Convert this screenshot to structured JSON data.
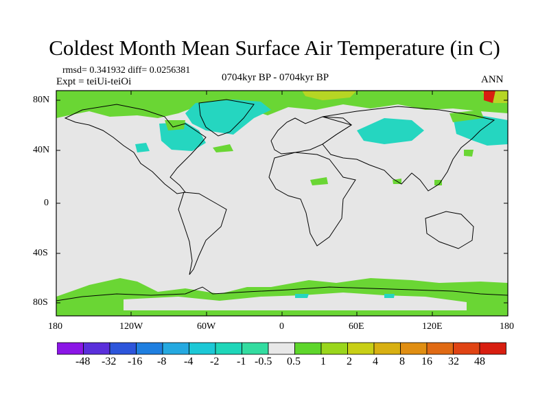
{
  "title": "Coldest Month Mean Surface Air Temperature (in C)",
  "stats": "rmsd= 0.341932 diff= 0.0256381",
  "experiment": "Expt = teiUi-teiOi",
  "period": "0704kyr BP - 0704kyr BP",
  "season": "ANN",
  "lat_ticks": [
    "80N",
    "40N",
    "0",
    "40S",
    "80S"
  ],
  "lon_ticks": [
    "180",
    "120W",
    "60W",
    "0",
    "60E",
    "120E",
    "180"
  ],
  "colorbar": {
    "labels": [
      "-48",
      "-32",
      "-16",
      "-8",
      "-4",
      "-2",
      "-1",
      "-0.5",
      "0.5",
      "1",
      "2",
      "4",
      "8",
      "16",
      "32",
      "48"
    ],
    "colors": [
      "#8b16e6",
      "#5a2fdb",
      "#2d55db",
      "#1f7fe0",
      "#25a9e0",
      "#1cc8d6",
      "#1ed6b9",
      "#33dca0",
      "#e8e8e8",
      "#5ed62b",
      "#9ad61c",
      "#c8cf16",
      "#d8b012",
      "#e08e12",
      "#e06a14",
      "#e04414",
      "#d81e10"
    ]
  },
  "colors": {
    "ocean_land": "#e6e6e6",
    "green": "#6ad634",
    "cyan": "#25d6c0",
    "olive": "#b6d624",
    "coast": "#000000"
  }
}
